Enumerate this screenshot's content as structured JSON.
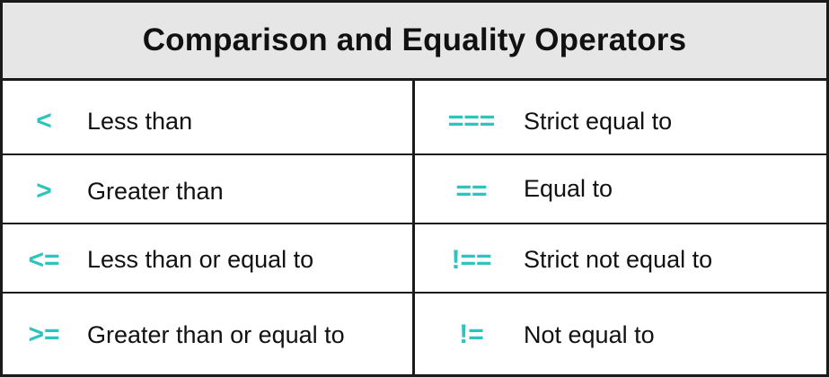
{
  "title": "Comparison and Equality Operators",
  "colors": {
    "accent": "#2ec4be",
    "header_bg": "#e6e6e6",
    "border": "#1a1a1a",
    "text": "#111111"
  },
  "left_column": [
    {
      "operator": "<",
      "description": "Less than"
    },
    {
      "operator": ">",
      "description": "Greater than"
    },
    {
      "operator": "<=",
      "description": "Less than or equal to"
    },
    {
      "operator": ">=",
      "description": "Greater than or equal to"
    }
  ],
  "right_column": [
    {
      "operator": "===",
      "description": "Strict equal to"
    },
    {
      "operator": "==",
      "description": "Equal to"
    },
    {
      "operator": "!==",
      "description": "Strict not equal to"
    },
    {
      "operator": "!=",
      "description": "Not equal to"
    }
  ]
}
